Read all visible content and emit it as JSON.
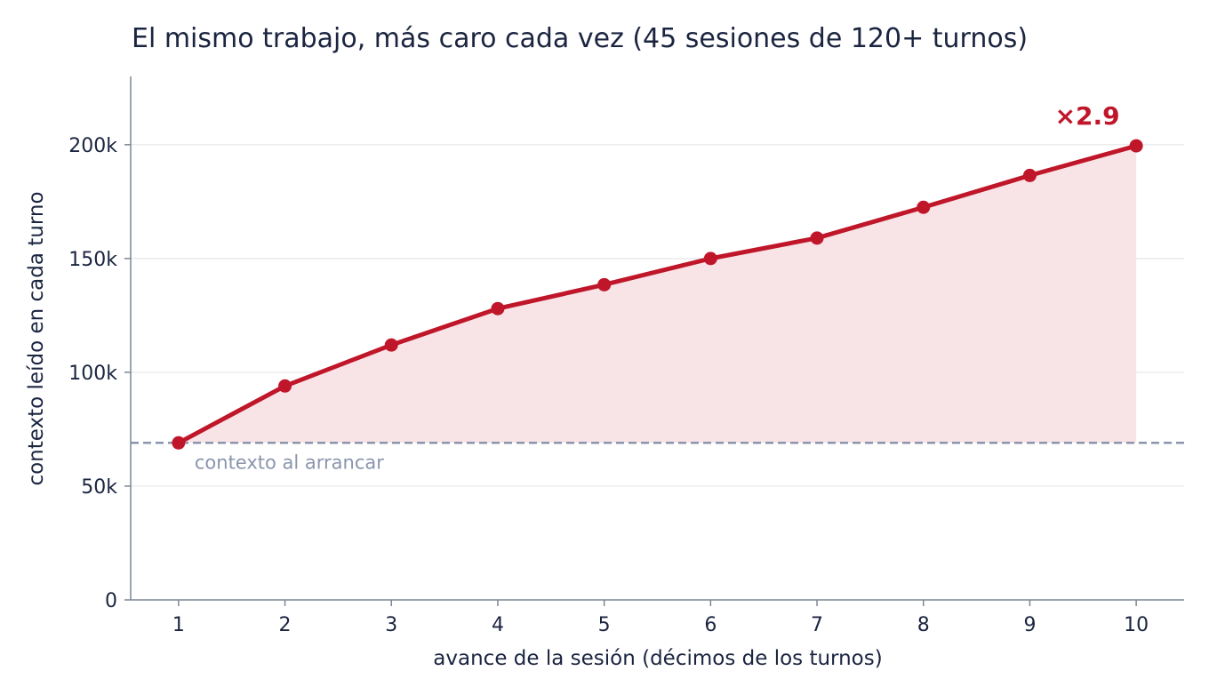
{
  "chart_data": {
    "type": "line",
    "title": "El mismo trabajo, más caro cada vez  (45 sesiones de 120+ turnos)",
    "xlabel": "avance de la sesión (décimos de los turnos)",
    "ylabel": "contexto leído en cada turno",
    "x": [
      1,
      2,
      3,
      4,
      5,
      6,
      7,
      8,
      9,
      10
    ],
    "x_tick_labels": [
      "1",
      "2",
      "3",
      "4",
      "5",
      "6",
      "7",
      "8",
      "9",
      "10"
    ],
    "series": [
      {
        "values": [
          69000,
          94000,
          112000,
          128000,
          138500,
          150000,
          159000,
          172500,
          186500,
          199500
        ]
      }
    ],
    "xlim": [
      0.55,
      10.45
    ],
    "ylim": [
      0,
      230000
    ],
    "y_ticks": [
      0,
      50000,
      100000,
      150000,
      200000
    ],
    "y_tick_labels": [
      "0",
      "50k",
      "100k",
      "150k",
      "200k"
    ],
    "grid": "horizontal",
    "area_fill": true,
    "reference_line": {
      "value": 69000,
      "label": "contexto al arrancar",
      "style": "dashed"
    },
    "annotation": {
      "text": "×2.9",
      "at_x": 10
    },
    "colors": {
      "line": "#c0162a",
      "fill": "#f8e3e6",
      "reference": "#8a95ad",
      "text": "#1b2540"
    }
  }
}
